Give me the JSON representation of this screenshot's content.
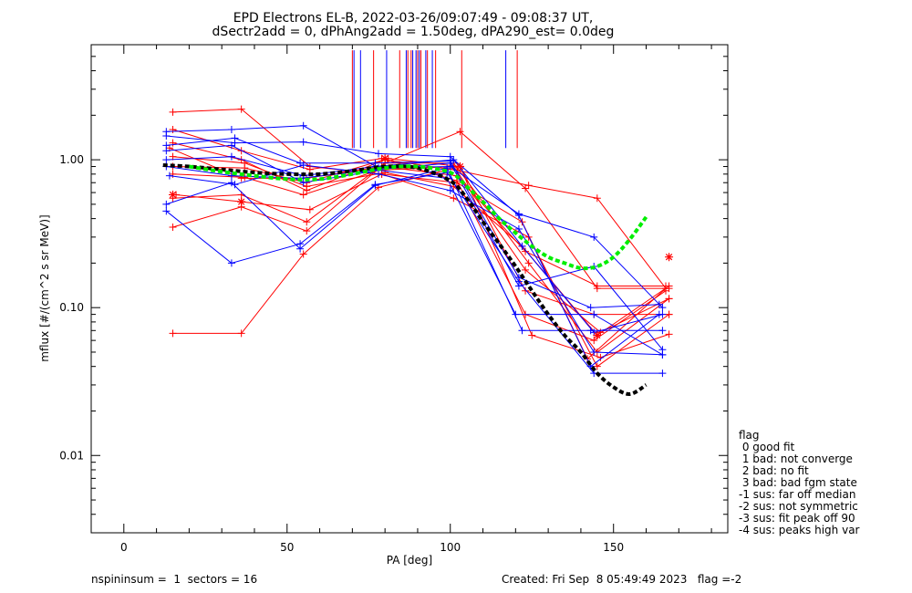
{
  "chart_data": {
    "type": "line",
    "title": "EPD Electrons EL-B, 2022-03-26/09:07:49 - 09:08:37 UT,",
    "subtitle": "dSectr2add = 0, dPhAng2add = 1.50deg, dPA290_est=   0.0deg",
    "xlabel": "PA [deg]",
    "ylabel": "mflux [#/(cm^2 s sr MeV)]",
    "xlim": [
      -10,
      185
    ],
    "ylim": [
      0.003,
      6
    ],
    "yscale": "log",
    "xticks": [
      0,
      50,
      100,
      150
    ],
    "xtick_labels": [
      "0",
      "50",
      "100",
      "150"
    ],
    "yticks": [
      0.01,
      0.1,
      1.0
    ],
    "ytick_labels": [
      "0.01",
      "0.10",
      "1.00"
    ],
    "grid": false,
    "colors": {
      "red": "#ff0000",
      "blue": "#0000ff",
      "black": "#000000",
      "green": "#00ee00"
    },
    "vertical_lines": {
      "y_range": [
        1.2,
        5.5
      ],
      "blue_x": [
        70.5,
        72.5,
        80.5,
        86.5,
        88.5,
        89.5,
        90.5,
        92.5,
        94.5,
        117
      ],
      "red_x": [
        70,
        76.5,
        84.5,
        87,
        88,
        90,
        91,
        93,
        95.5,
        103.5,
        120.5
      ]
    },
    "series": [
      {
        "color": "red",
        "x": [
          15,
          36,
          55,
          78,
          103,
          125,
          146,
          167
        ],
        "y": [
          0.067,
          0.067,
          0.23,
          0.65,
          0.9,
          0.065,
          0.046,
          0.066
        ]
      },
      {
        "color": "red",
        "x": [
          15,
          36,
          57,
          79,
          102,
          122,
          142,
          166
        ],
        "y": [
          2.1,
          2.2,
          0.9,
          0.8,
          0.7,
          0.38,
          0.045,
          0.135
        ]
      },
      {
        "color": "red",
        "x": [
          15,
          36,
          56,
          80,
          101,
          124,
          145,
          167
        ],
        "y": [
          0.35,
          0.48,
          0.33,
          0.95,
          0.95,
          0.2,
          0.05,
          0.115
        ]
      },
      {
        "color": "red",
        "x": [
          16,
          36,
          57,
          79,
          101,
          124,
          145,
          167
        ],
        "y": [
          0.58,
          0.52,
          0.46,
          0.8,
          0.55,
          0.3,
          0.04,
          0.09
        ]
      },
      {
        "color": "red",
        "x": [
          15,
          36,
          56,
          80,
          102,
          124,
          145,
          166
        ],
        "y": [
          1.3,
          1.0,
          0.62,
          1.0,
          0.85,
          0.67,
          0.55,
          0.135
        ]
      },
      {
        "color": "red",
        "x": [
          15,
          37,
          56,
          81,
          103,
          123,
          144,
          167
        ],
        "y": [
          0.9,
          0.88,
          0.7,
          1.02,
          0.9,
          0.13,
          0.09,
          0.09
        ]
      },
      {
        "color": "red",
        "x": [
          14,
          36,
          56,
          79,
          102,
          123,
          145,
          166
        ],
        "y": [
          1.2,
          0.75,
          0.75,
          0.9,
          0.78,
          0.24,
          0.14,
          0.14
        ]
      },
      {
        "color": "red",
        "x": [
          15,
          37,
          56,
          80,
          101,
          122,
          145,
          167
        ],
        "y": [
          1.05,
          0.95,
          0.66,
          0.82,
          0.66,
          0.26,
          0.065,
          0.14
        ]
      },
      {
        "color": "red",
        "x": [
          15,
          37,
          55,
          78,
          101,
          123,
          146,
          167
        ],
        "y": [
          0.8,
          0.76,
          0.58,
          0.85,
          0.9,
          0.18,
          0.068,
          0.115
        ]
      },
      {
        "color": "red",
        "x": [
          15,
          36,
          57,
          79,
          102,
          123,
          144,
          166
        ],
        "y": [
          1.6,
          1.15,
          0.86,
          1.02,
          0.72,
          0.09,
          0.06,
          0.13
        ]
      },
      {
        "color": "red",
        "x": [
          15,
          36,
          56,
          80,
          103,
          123,
          145,
          167
        ],
        "y": [
          0.55,
          0.58,
          0.38,
          0.95,
          1.55,
          0.64,
          0.135,
          0.135
        ]
      },
      {
        "color": "blue",
        "x": [
          13,
          33,
          55,
          78,
          100,
          121,
          144,
          165
        ],
        "y": [
          1.55,
          1.6,
          1.7,
          0.88,
          0.9,
          0.43,
          0.3,
          0.1
        ]
      },
      {
        "color": "blue",
        "x": [
          13,
          33,
          54,
          77,
          99,
          121,
          144,
          165
        ],
        "y": [
          0.45,
          0.2,
          0.27,
          0.68,
          0.82,
          0.15,
          0.036,
          0.036
        ]
      },
      {
        "color": "blue",
        "x": [
          13,
          34,
          55,
          78,
          100,
          121,
          143,
          164
        ],
        "y": [
          1.45,
          1.3,
          1.32,
          1.1,
          1.05,
          0.42,
          0.04,
          0.09
        ]
      },
      {
        "color": "blue",
        "x": [
          13,
          33,
          54,
          77,
          99,
          122,
          143,
          165
        ],
        "y": [
          0.5,
          0.7,
          0.25,
          0.67,
          0.88,
          0.07,
          0.07,
          0.07
        ]
      },
      {
        "color": "blue",
        "x": [
          13,
          33,
          55,
          78,
          99,
          120,
          144,
          165
        ],
        "y": [
          1.15,
          1.25,
          0.7,
          0.85,
          0.75,
          0.09,
          0.09,
          0.048
        ]
      },
      {
        "color": "blue",
        "x": [
          14,
          34,
          55,
          78,
          100,
          121,
          144,
          165
        ],
        "y": [
          0.78,
          0.68,
          0.92,
          0.8,
          0.62,
          0.34,
          0.05,
          0.048
        ]
      },
      {
        "color": "blue",
        "x": [
          13,
          33,
          55,
          77,
          101,
          122,
          144,
          165
        ],
        "y": [
          1.0,
          1.05,
          0.78,
          0.9,
          1.0,
          0.26,
          0.068,
          0.09
        ]
      },
      {
        "color": "blue",
        "x": [
          13,
          34,
          54,
          77,
          100,
          121,
          143,
          164
        ],
        "y": [
          1.25,
          1.4,
          0.95,
          0.95,
          0.98,
          0.16,
          0.1,
          0.105
        ]
      },
      {
        "color": "blue",
        "x": [
          13,
          33,
          54,
          78,
          100,
          121,
          144,
          165
        ],
        "y": [
          0.9,
          0.78,
          0.75,
          0.86,
          0.95,
          0.14,
          0.19,
          0.052
        ]
      }
    ],
    "star_markers": {
      "color": "red",
      "points": [
        [
          15,
          0.58
        ],
        [
          36,
          0.52
        ],
        [
          80,
          1.02
        ],
        [
          103,
          0.9
        ],
        [
          145,
          0.065
        ],
        [
          167,
          0.22
        ]
      ]
    },
    "fit_curves": [
      {
        "color": "black",
        "x": [
          12,
          20,
          30,
          40,
          50,
          60,
          70,
          80,
          90,
          100,
          105,
          110,
          115,
          120,
          125,
          130,
          135,
          140,
          145,
          150,
          155,
          160
        ],
        "y": [
          0.92,
          0.9,
          0.86,
          0.82,
          0.8,
          0.8,
          0.84,
          0.9,
          0.88,
          0.72,
          0.55,
          0.38,
          0.27,
          0.19,
          0.13,
          0.09,
          0.065,
          0.05,
          0.036,
          0.029,
          0.026,
          0.03
        ]
      },
      {
        "color": "green",
        "x": [
          20,
          30,
          40,
          50,
          60,
          70,
          80,
          90,
          100,
          105,
          110,
          115,
          120,
          125,
          130,
          135,
          140,
          145,
          150,
          155,
          160
        ],
        "y": [
          0.9,
          0.83,
          0.78,
          0.74,
          0.74,
          0.8,
          0.88,
          0.9,
          0.82,
          0.66,
          0.52,
          0.4,
          0.32,
          0.26,
          0.22,
          0.2,
          0.185,
          0.19,
          0.22,
          0.29,
          0.41
        ]
      }
    ],
    "legend": {
      "placement": "right",
      "title": "flag",
      "entries": [
        " 0 good fit",
        " 1 bad: not converge",
        " 2 bad: no fit",
        " 3 bad: bad fgm state",
        "-1 sus: far off median",
        "-2 sus: not symmetric",
        "-3 sus: fit peak off 90",
        "-4 sus: peaks high var"
      ]
    },
    "footer": {
      "left": "nspininsum =  1  sectors = 16",
      "right": "Created: Fri Sep  8 05:49:49 2023   flag =-2"
    }
  }
}
